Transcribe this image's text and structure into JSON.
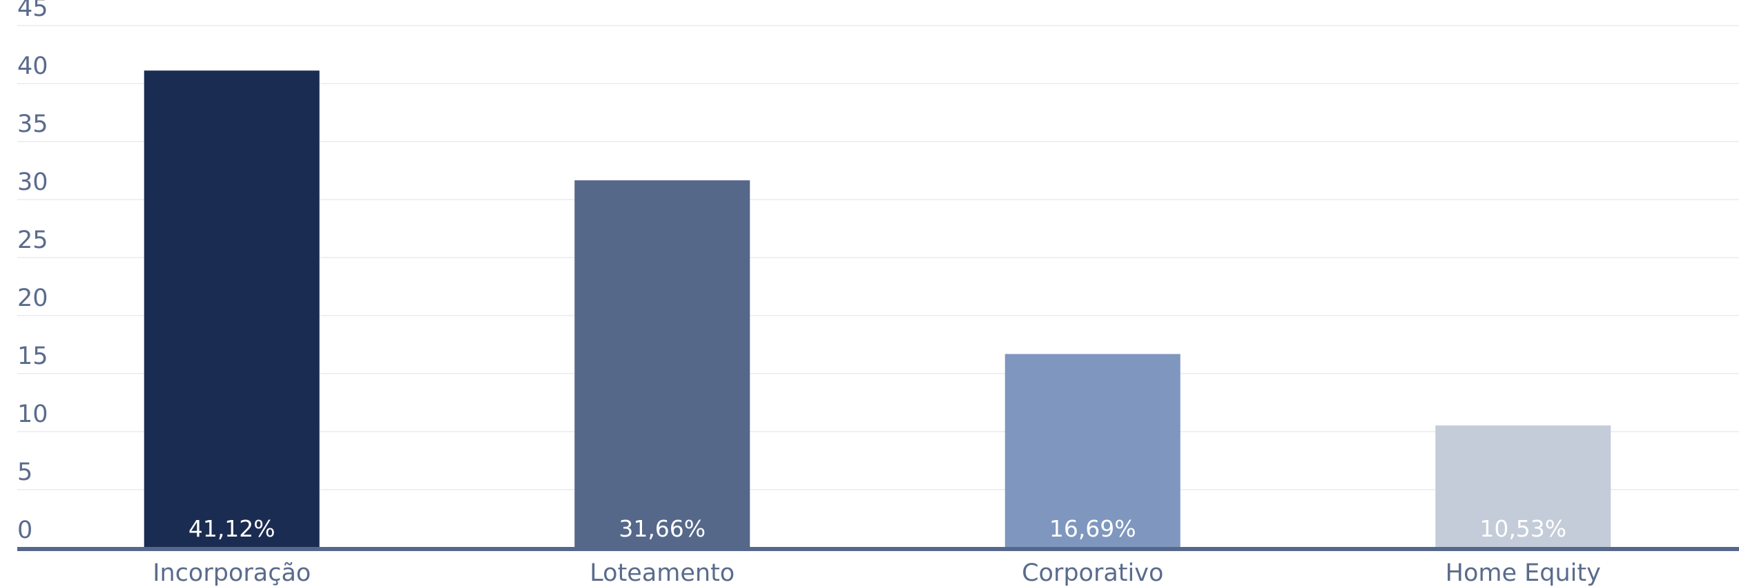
{
  "chart_data": {
    "type": "bar",
    "categories": [
      "Incorporação",
      "Loteamento",
      "Corporativo",
      "Home Equity"
    ],
    "values": [
      41.12,
      31.66,
      16.69,
      10.53
    ],
    "data_labels": [
      "41,12%",
      "31,66%",
      "16,69%",
      "10,53%"
    ],
    "colors": [
      "#1b2c52",
      "#55688a",
      "#7f97bf",
      "#c4ccd9"
    ],
    "yticks": [
      0,
      5,
      10,
      15,
      20,
      25,
      30,
      35,
      40,
      45
    ],
    "ylim": [
      0,
      45
    ],
    "grid": true,
    "legend": "none"
  }
}
